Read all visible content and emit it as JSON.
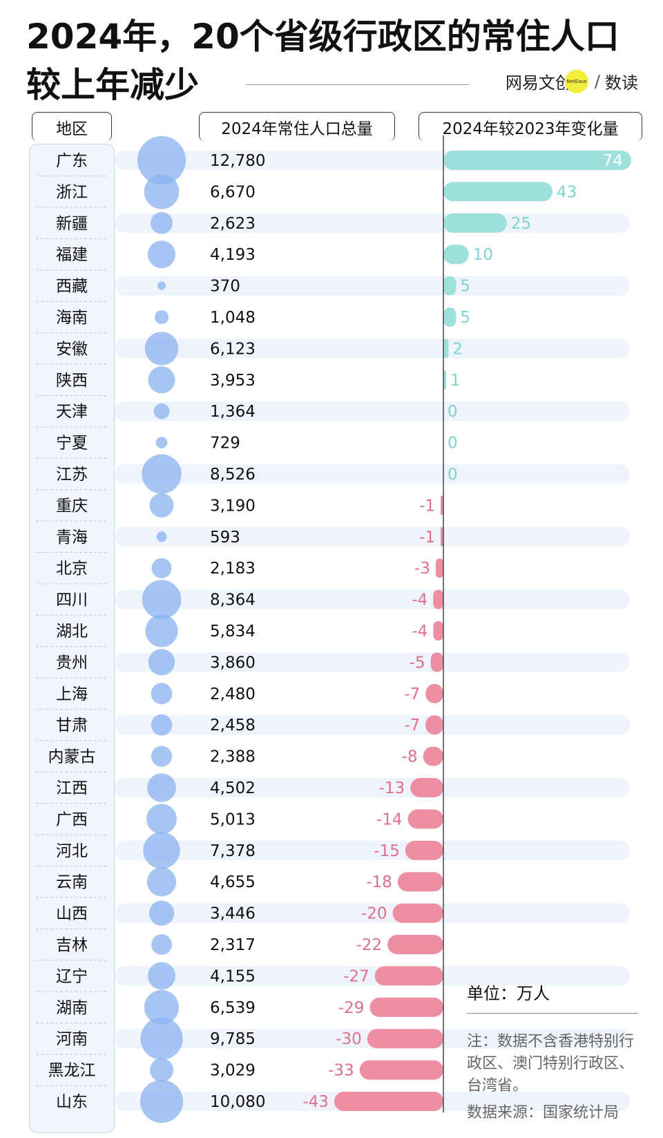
{
  "title": {
    "line1": "2024年，20个省级行政区的常住人口",
    "line2": "较上年减少"
  },
  "brand": {
    "name": "网易文创",
    "dot_text": "NetEase",
    "slash": "/",
    "suffix": "数读",
    "dot_color": "#f3ee3d"
  },
  "headers": {
    "region": "地区",
    "population": "2024年常住人口总量",
    "change": "2024年较2023年变化量"
  },
  "chart_data": {
    "type": "bar",
    "title": "2024年，20个省级行政区的常住人口较上年减少",
    "unit": "万人",
    "categories": [
      "广东",
      "浙江",
      "新疆",
      "福建",
      "西藏",
      "海南",
      "安徽",
      "陕西",
      "天津",
      "宁夏",
      "江苏",
      "重庆",
      "青海",
      "北京",
      "四川",
      "湖北",
      "贵州",
      "上海",
      "甘肃",
      "内蒙古",
      "江西",
      "广西",
      "河北",
      "云南",
      "山西",
      "吉林",
      "辽宁",
      "湖南",
      "河南",
      "黑龙江",
      "山东"
    ],
    "population": [
      12780,
      6670,
      2623,
      4193,
      370,
      1048,
      6123,
      3953,
      1364,
      729,
      8526,
      3190,
      593,
      2183,
      8364,
      5834,
      3860,
      2480,
      2458,
      2388,
      4502,
      5013,
      7378,
      4655,
      3446,
      2317,
      4155,
      6539,
      9785,
      3029,
      10080
    ],
    "population_labels": [
      "12,780",
      "6,670",
      "2,623",
      "4,193",
      "370",
      "1,048",
      "6,123",
      "3,953",
      "1,364",
      "729",
      "8,526",
      "3,190",
      "593",
      "2,183",
      "8,364",
      "5,834",
      "3,860",
      "2,480",
      "2,458",
      "2,388",
      "4,502",
      "5,013",
      "7,378",
      "4,655",
      "3,446",
      "2,317",
      "4,155",
      "6,539",
      "9,785",
      "3,029",
      "10,080"
    ],
    "change": [
      74,
      43,
      25,
      10,
      5,
      5,
      2,
      1,
      0,
      0,
      0,
      -1,
      -1,
      -3,
      -4,
      -4,
      -5,
      -7,
      -7,
      -8,
      -13,
      -14,
      -15,
      -18,
      -20,
      -22,
      -27,
      -29,
      -30,
      -33,
      -43
    ],
    "xlim": [
      -43,
      74
    ],
    "colors": {
      "bubble": "#8db5ef",
      "positive": "#9ee0dc",
      "positive_text": "#7fd3cf",
      "negative": "#ee8ea3",
      "negative_text": "#e0708c",
      "stripe": "#eef3fc",
      "axis": "#444444"
    }
  },
  "unit_label": "单位：万人",
  "note": "注：数据不含香港特别行政区、澳门特别行政区、台湾省。",
  "source": "数据来源：国家统计局"
}
